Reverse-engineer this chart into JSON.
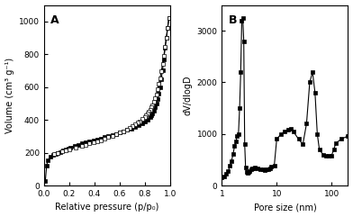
{
  "panel_A": {
    "label": "A",
    "xlabel": "Relative pressure (p/p₀)",
    "ylabel": "Volume (cm³ g⁻¹)",
    "xlim": [
      0,
      1.0
    ],
    "ylim": [
      0,
      1100
    ],
    "xticks": [
      0.0,
      0.2,
      0.4,
      0.6,
      0.8,
      1.0
    ],
    "yticks": [
      0,
      200,
      400,
      600,
      800,
      1000
    ],
    "adsorption_x": [
      0.01,
      0.02,
      0.03,
      0.05,
      0.07,
      0.09,
      0.11,
      0.13,
      0.15,
      0.17,
      0.19,
      0.21,
      0.24,
      0.27,
      0.3,
      0.33,
      0.36,
      0.39,
      0.42,
      0.45,
      0.48,
      0.51,
      0.54,
      0.57,
      0.6,
      0.63,
      0.66,
      0.69,
      0.72,
      0.75,
      0.78,
      0.8,
      0.82,
      0.84,
      0.85,
      0.86,
      0.87,
      0.88,
      0.89,
      0.9,
      0.91,
      0.92,
      0.93,
      0.94,
      0.95,
      0.96,
      0.97,
      0.98,
      0.99
    ],
    "adsorption_y": [
      30,
      120,
      155,
      175,
      185,
      192,
      198,
      205,
      213,
      218,
      225,
      232,
      240,
      248,
      256,
      262,
      268,
      274,
      280,
      288,
      295,
      302,
      308,
      315,
      322,
      330,
      338,
      348,
      358,
      368,
      378,
      390,
      400,
      415,
      428,
      440,
      458,
      478,
      500,
      525,
      560,
      600,
      650,
      705,
      770,
      840,
      900,
      960,
      1020
    ],
    "desorption_x": [
      0.99,
      0.98,
      0.97,
      0.96,
      0.95,
      0.94,
      0.93,
      0.92,
      0.91,
      0.9,
      0.89,
      0.88,
      0.87,
      0.86,
      0.85,
      0.84,
      0.83,
      0.82,
      0.81,
      0.8,
      0.78,
      0.76,
      0.74,
      0.72,
      0.7,
      0.68,
      0.66,
      0.63,
      0.6,
      0.57,
      0.54,
      0.51,
      0.48,
      0.45,
      0.42,
      0.39,
      0.36,
      0.33,
      0.3,
      0.25,
      0.2,
      0.17,
      0.14,
      0.11,
      0.08
    ],
    "desorption_y": [
      1020,
      960,
      900,
      845,
      790,
      740,
      695,
      655,
      620,
      590,
      555,
      530,
      510,
      490,
      475,
      460,
      448,
      438,
      428,
      418,
      405,
      392,
      382,
      372,
      362,
      352,
      342,
      332,
      322,
      312,
      303,
      294,
      285,
      277,
      270,
      263,
      256,
      249,
      242,
      232,
      220,
      213,
      207,
      200,
      193
    ]
  },
  "panel_B": {
    "label": "B",
    "xlabel": "Pore size (nm)",
    "ylabel": "dV/dlogD",
    "xlim_log": [
      1,
      200
    ],
    "ylim": [
      0,
      3500
    ],
    "yticks": [
      0,
      1000,
      2000,
      3000
    ],
    "pore_x": [
      1.0,
      1.1,
      1.2,
      1.3,
      1.4,
      1.5,
      1.6,
      1.7,
      1.8,
      1.9,
      2.0,
      2.1,
      2.2,
      2.3,
      2.4,
      2.5,
      2.6,
      2.7,
      2.8,
      2.9,
      3.0,
      3.2,
      3.4,
      3.6,
      3.8,
      4.0,
      4.5,
      5.0,
      5.5,
      6.0,
      6.5,
      7.0,
      7.5,
      8.0,
      9.0,
      10.0,
      12.0,
      14.0,
      16.0,
      18.0,
      20.0,
      25.0,
      30.0,
      35.0,
      40.0,
      45.0,
      50.0,
      55.0,
      60.0,
      70.0,
      80.0,
      90.0,
      100.0,
      110.0,
      120.0,
      150.0,
      200.0
    ],
    "pore_y": [
      150,
      180,
      220,
      280,
      380,
      480,
      620,
      760,
      860,
      960,
      1000,
      1500,
      2200,
      3200,
      3250,
      2800,
      800,
      350,
      260,
      250,
      260,
      280,
      310,
      330,
      340,
      350,
      340,
      320,
      310,
      305,
      310,
      320,
      340,
      360,
      380,
      900,
      1000,
      1050,
      1080,
      1100,
      1050,
      900,
      800,
      1200,
      2000,
      2200,
      1800,
      1000,
      700,
      600,
      580,
      570,
      580,
      700,
      820,
      900,
      960
    ]
  },
  "line_color": "#000000",
  "marker": "s",
  "markersize": 3.5,
  "bg_color": "#ffffff"
}
